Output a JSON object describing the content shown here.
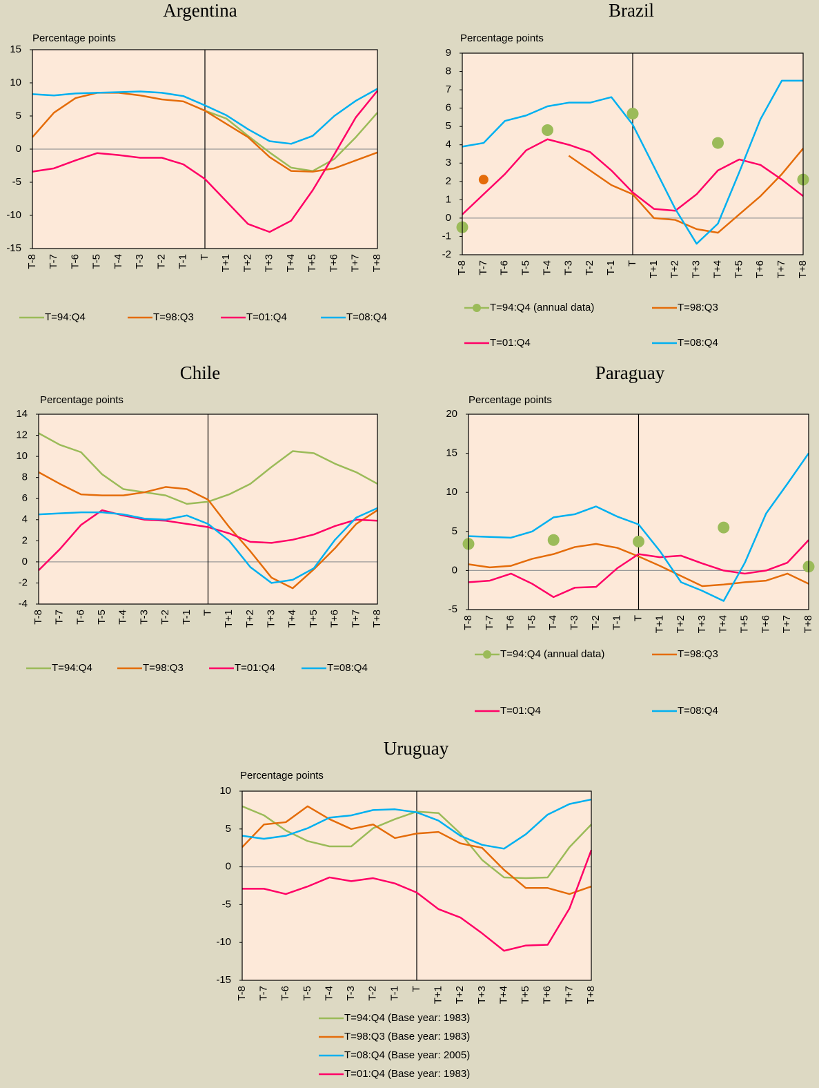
{
  "chart_data": [
    {
      "type": "line",
      "title": "Argentina",
      "y_label": "Percentage points",
      "categories": [
        "T-8",
        "T-7",
        "T-6",
        "T-5",
        "T-4",
        "T-3",
        "T-2",
        "T-1",
        "T",
        "T+1",
        "T+2",
        "T+3",
        "T+4",
        "T+5",
        "T+6",
        "T+7",
        "T+8"
      ],
      "ylim": [
        -15,
        15
      ],
      "yticks": [
        -15,
        -10,
        -5,
        0,
        5,
        10,
        15
      ],
      "series": [
        {
          "name": "T=94:Q4",
          "color": "#9bbb59",
          "values": [
            null,
            null,
            null,
            null,
            null,
            null,
            null,
            null,
            5.8,
            4.6,
            2,
            -0.5,
            -2.8,
            -3.3,
            -1.5,
            1.8,
            5.5
          ]
        },
        {
          "name": "T=98:Q3",
          "color": "#e46c0a",
          "values": [
            1.8,
            5.5,
            7.7,
            8.5,
            8.5,
            8.1,
            7.5,
            7.2,
            5.8,
            3.8,
            1.8,
            -1.2,
            -3.3,
            -3.4,
            -2.9,
            -1.7,
            -0.5
          ]
        },
        {
          "name": "T=01:Q4",
          "color": "#ff0066",
          "values": [
            -3.4,
            -2.9,
            -1.7,
            -0.6,
            -0.9,
            -1.3,
            -1.3,
            -2.3,
            -4.5,
            -7.9,
            -11.3,
            -12.5,
            -10.8,
            -6.2,
            -0.8,
            4.8,
            8.8
          ]
        },
        {
          "name": "T=08:Q4",
          "color": "#00b0f0",
          "values": [
            8.3,
            8.1,
            8.4,
            8.5,
            8.6,
            8.7,
            8.5,
            8.0,
            6.6,
            5.1,
            3.0,
            1.2,
            0.8,
            2.0,
            5.0,
            7.3,
            9.1
          ]
        }
      ]
    },
    {
      "type": "line",
      "title": "Brazil",
      "y_label": "Percentage points",
      "categories": [
        "T-8",
        "T-7",
        "T-6",
        "T-5",
        "T-4",
        "T-3",
        "T-2",
        "T-1",
        "T",
        "T+1",
        "T+2",
        "T+3",
        "T+4",
        "T+5",
        "T+6",
        "T+7",
        "T+8"
      ],
      "ylim": [
        -2,
        9
      ],
      "yticks": [
        -2,
        -1,
        0,
        1,
        2,
        3,
        4,
        5,
        6,
        7,
        8,
        9
      ],
      "series": [
        {
          "name": "T=94:Q4 (annual data)",
          "color": "#9bbb59",
          "markers": true,
          "values": [
            -0.5,
            null,
            null,
            null,
            4.8,
            null,
            null,
            null,
            5.7,
            null,
            null,
            null,
            4.1,
            null,
            null,
            null,
            2.1
          ]
        },
        {
          "name": "T=98:Q3",
          "color": "#e46c0a",
          "values": [
            null,
            2.1,
            null,
            null,
            null,
            3.4,
            2.6,
            1.8,
            1.3,
            0.0,
            -0.1,
            -0.6,
            -0.8,
            0.2,
            1.2,
            2.4,
            3.8
          ]
        },
        {
          "name": "T=01:Q4",
          "color": "#ff0066",
          "values": [
            0.2,
            1.3,
            2.4,
            3.7,
            4.3,
            4.0,
            3.6,
            2.6,
            1.4,
            0.5,
            0.4,
            1.3,
            2.6,
            3.2,
            2.9,
            2.1,
            1.2
          ]
        },
        {
          "name": "T=08:Q4",
          "color": "#00b0f0",
          "values": [
            3.9,
            4.1,
            5.3,
            5.6,
            6.1,
            6.3,
            6.3,
            6.6,
            5.1,
            2.8,
            0.5,
            -1.4,
            -0.3,
            2.5,
            5.4,
            7.5,
            7.5
          ]
        }
      ]
    },
    {
      "type": "line",
      "title": "Chile",
      "y_label": "Percentage points",
      "categories": [
        "T-8",
        "T-7",
        "T-6",
        "T-5",
        "T-4",
        "T-3",
        "T-2",
        "T-1",
        "T",
        "T+1",
        "T+2",
        "T+3",
        "T+4",
        "T+5",
        "T+6",
        "T+7",
        "T+8"
      ],
      "ylim": [
        -4,
        14
      ],
      "yticks": [
        -4,
        -2,
        0,
        2,
        4,
        6,
        8,
        10,
        12,
        14
      ],
      "series": [
        {
          "name": "T=94:Q4",
          "color": "#9bbb59",
          "values": [
            12.2,
            11.1,
            10.4,
            8.3,
            6.9,
            6.6,
            6.3,
            5.5,
            5.7,
            6.4,
            7.4,
            9.0,
            10.5,
            10.3,
            9.3,
            8.5,
            7.4
          ]
        },
        {
          "name": "T=98:Q3",
          "color": "#e46c0a",
          "values": [
            8.5,
            7.4,
            6.4,
            6.3,
            6.3,
            6.6,
            7.1,
            6.9,
            5.9,
            3.3,
            1.0,
            -1.5,
            -2.5,
            -0.7,
            1.3,
            3.6,
            4.9
          ]
        },
        {
          "name": "T=01:Q4",
          "color": "#ff0066",
          "values": [
            -0.8,
            1.2,
            3.5,
            4.9,
            4.4,
            4.0,
            3.9,
            3.6,
            3.3,
            2.7,
            1.9,
            1.8,
            2.1,
            2.6,
            3.4,
            4.0,
            3.9
          ]
        },
        {
          "name": "T=08:Q4",
          "color": "#00b0f0",
          "values": [
            4.5,
            4.6,
            4.7,
            4.7,
            4.5,
            4.1,
            4.0,
            4.4,
            3.6,
            2.0,
            -0.5,
            -2.0,
            -1.7,
            -0.6,
            2.1,
            4.2,
            5.1
          ]
        }
      ]
    },
    {
      "type": "line",
      "title": "Paraguay",
      "y_label": "Percentage points",
      "categories": [
        "T-8",
        "T-7",
        "T-6",
        "T-5",
        "T-4",
        "T-3",
        "T-2",
        "T-1",
        "T",
        "T+1",
        "T+2",
        "T+3",
        "T+4",
        "T+5",
        "T+6",
        "T+7",
        "T+8"
      ],
      "ylim": [
        -5,
        20
      ],
      "yticks": [
        -5,
        0,
        5,
        10,
        15,
        20
      ],
      "series": [
        {
          "name": "T=94:Q4 (annual data)",
          "color": "#9bbb59",
          "markers": true,
          "values": [
            3.4,
            null,
            null,
            null,
            3.9,
            null,
            null,
            null,
            3.7,
            null,
            null,
            null,
            5.5,
            null,
            null,
            null,
            0.5
          ]
        },
        {
          "name": "T=98:Q3",
          "color": "#e46c0a",
          "values": [
            0.8,
            0.4,
            0.6,
            1.5,
            2.1,
            3.0,
            3.4,
            2.9,
            1.8,
            0.6,
            -0.7,
            -2.0,
            -1.8,
            -1.5,
            -1.3,
            -0.4,
            -1.7
          ]
        },
        {
          "name": "T=01:Q4",
          "color": "#ff0066",
          "values": [
            -1.5,
            -1.3,
            -0.4,
            -1.7,
            -3.4,
            -2.2,
            -2.1,
            0.3,
            2.1,
            1.7,
            1.9,
            0.9,
            0.0,
            -0.4,
            0.0,
            1.0,
            3.9
          ]
        },
        {
          "name": "T=08:Q4",
          "color": "#00b0f0",
          "values": [
            4.4,
            4.3,
            4.2,
            5.0,
            6.8,
            7.2,
            8.2,
            6.9,
            5.9,
            2.5,
            -1.5,
            -2.6,
            -3.9,
            1.0,
            7.3,
            11.1,
            15.0
          ]
        }
      ]
    },
    {
      "type": "line",
      "title": "Uruguay",
      "y_label": "Percentage points",
      "categories": [
        "T-8",
        "T-7",
        "T-6",
        "T-5",
        "T-4",
        "T-3",
        "T-2",
        "T-1",
        "T",
        "T+1",
        "T+2",
        "T+3",
        "T+4",
        "T+5",
        "T+6",
        "T+7",
        "T+8"
      ],
      "ylim": [
        -15,
        10
      ],
      "yticks": [
        -15,
        -10,
        -5,
        0,
        5,
        10
      ],
      "series": [
        {
          "name": "T=94:Q4 (Base year: 1983)",
          "color": "#9bbb59",
          "values": [
            8.0,
            6.8,
            4.8,
            3.4,
            2.7,
            2.7,
            5.1,
            6.3,
            7.3,
            7.1,
            4.4,
            0.9,
            -1.4,
            -1.5,
            -1.4,
            2.6,
            5.6
          ]
        },
        {
          "name": "T=98:Q3 (Base year: 1983)",
          "color": "#e46c0a",
          "values": [
            2.6,
            5.6,
            5.9,
            8.0,
            6.3,
            5.0,
            5.6,
            3.8,
            4.4,
            4.6,
            3.1,
            2.5,
            -0.4,
            -2.8,
            -2.8,
            -3.6,
            -2.6
          ]
        },
        {
          "name": "T=08:Q4 (Base year: 2005)",
          "color": "#00b0f0",
          "values": [
            4.1,
            3.7,
            4.1,
            5.1,
            6.5,
            6.8,
            7.5,
            7.6,
            7.2,
            6.1,
            4.1,
            2.9,
            2.4,
            4.3,
            6.9,
            8.3,
            8.9
          ]
        },
        {
          "name": "T=01:Q4 (Base year: 1983)",
          "color": "#ff0066",
          "values": [
            -2.9,
            -2.9,
            -3.6,
            -2.6,
            -1.4,
            -1.9,
            -1.5,
            -2.2,
            -3.4,
            -5.6,
            -6.7,
            -8.8,
            -11.1,
            -10.4,
            -10.3,
            -5.5,
            2.2
          ]
        }
      ]
    }
  ]
}
